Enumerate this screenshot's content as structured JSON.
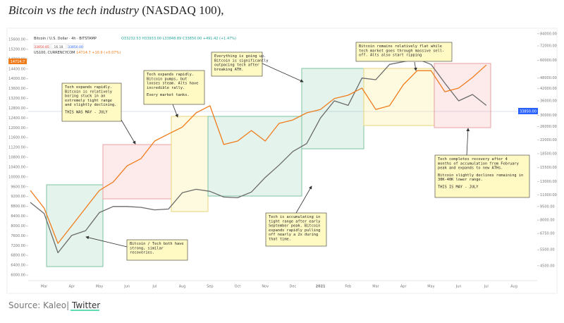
{
  "article": {
    "title_italic": "Bitcoin vs the tech industry",
    "title_rest": "(NASDAQ 100),",
    "source_prefix": "Source: Kaleo|",
    "source_link": "Twitter"
  },
  "chart_data": {
    "type": "line",
    "ohlc": "O33232.53 H33933.00 L33848.89 C33850.00 +491.42 (+1.47%)",
    "quote_boxes": [
      "33850.85",
      "16.18",
      "33850.00"
    ],
    "us100_quote": "14714.7 +10.9 (+0.07%)",
    "last_price_left": "14714.7",
    "last_price_right": "33850.00",
    "categories": [
      null,
      "Mar",
      null,
      "Apr",
      null,
      "May",
      null,
      "Jun",
      null,
      "Jul",
      null,
      "Aug",
      null,
      "Sep",
      null,
      "Oct",
      null,
      "Nov",
      null,
      "Dec",
      null,
      "2021",
      null,
      "Feb",
      null,
      "Mar",
      null,
      "Apr",
      null,
      "May",
      null,
      "Jun",
      null,
      "Jul",
      null,
      "Aug"
    ],
    "series": [
      {
        "name": "Bitcoin / U.S. Dollar · 4h · BITSTAMP",
        "color": "#6b6b6b",
        "axis": "y2",
        "values": [
          10000,
          8700,
          5300,
          6600,
          7000,
          8800,
          9500,
          9500,
          9400,
          9100,
          9200,
          11300,
          11800,
          11500,
          10700,
          10600,
          11400,
          13700,
          16000,
          19000,
          21000,
          29000,
          36000,
          34000,
          48000,
          47000,
          57000,
          59000,
          61000,
          57000,
          45000,
          36000,
          39000,
          34000,
          null,
          null
        ]
      },
      {
        "name": "US100, CURRENCYCOM",
        "color": "#f07c1c",
        "values": [
          9450,
          8730,
          7290,
          8010,
          8730,
          9450,
          9790,
          10450,
          10740,
          11460,
          11750,
          12030,
          12610,
          12900,
          11320,
          11460,
          11890,
          11460,
          12180,
          12320,
          12610,
          12750,
          13190,
          13330,
          13620,
          12750,
          12900,
          13760,
          14330,
          14330,
          13470,
          13620,
          14050,
          14560,
          null,
          null
        ]
      }
    ],
    "ylim": [
      6000,
      15600
    ],
    "yticks": [
      {
        "value": 6000,
        "label": "6000.00"
      },
      {
        "value": 6400,
        "label": "6400.00"
      },
      {
        "value": 6800,
        "label": "6800.00"
      },
      {
        "value": 7200,
        "label": "7200.00"
      },
      {
        "value": 7600,
        "label": "7600.00"
      },
      {
        "value": 8000,
        "label": "8000.00"
      },
      {
        "value": 8400,
        "label": "8400.00"
      },
      {
        "value": 8800,
        "label": "8800.00"
      },
      {
        "value": 9200,
        "label": "9200.00"
      },
      {
        "value": 9600,
        "label": "9600.00"
      },
      {
        "value": 10000,
        "label": "10000.00"
      },
      {
        "value": 10400,
        "label": "10400.00"
      },
      {
        "value": 10800,
        "label": "10800.00"
      },
      {
        "value": 11200,
        "label": "11200.00"
      },
      {
        "value": 11600,
        "label": "11600.00"
      },
      {
        "value": 12000,
        "label": "12000.00"
      },
      {
        "value": 12400,
        "label": "12400.00"
      },
      {
        "value": 12800,
        "label": "12800.00"
      },
      {
        "value": 13200,
        "label": "13200.00"
      },
      {
        "value": 13600,
        "label": "13600.00"
      },
      {
        "value": 14000,
        "label": "14000.00"
      },
      {
        "value": 14400,
        "label": "14400.00"
      },
      {
        "value": 14800,
        "label": "14800.00"
      },
      {
        "value": 15200,
        "label": "15200.00"
      },
      {
        "value": 15600,
        "label": "15600.00"
      }
    ],
    "y2lim": [
      4000,
      90000
    ],
    "y2log": true,
    "y2ticks": [
      {
        "value": 84000,
        "label": "84000.00"
      },
      {
        "value": 72000,
        "label": "72000.00"
      },
      {
        "value": 60000,
        "label": "60000.00"
      },
      {
        "value": 48000,
        "label": "48000.00"
      },
      {
        "value": 42000,
        "label": "42000.00"
      },
      {
        "value": 36000,
        "label": "36000.00"
      },
      {
        "value": 30000,
        "label": "30000.00"
      },
      {
        "value": 26000,
        "label": "26000.00"
      },
      {
        "value": 22000,
        "label": "22000.00"
      },
      {
        "value": 18500,
        "label": "18500.00"
      },
      {
        "value": 15500,
        "label": "15500.00"
      },
      {
        "value": 13000,
        "label": "13000.00"
      },
      {
        "value": 11000,
        "label": "11000.00"
      },
      {
        "value": 9500,
        "label": "9500.00"
      },
      {
        "value": 8000,
        "label": "8000.00"
      },
      {
        "value": 6750,
        "label": "6750.00"
      },
      {
        "value": 5500,
        "label": "5500.00"
      },
      {
        "value": 4500,
        "label": "4500.00"
      }
    ],
    "grid": false,
    "annotations": [
      {
        "paragraphs": [
          [
            "Tech expands rapidly.",
            "Bitcoin is relatively",
            "boring stuck in an",
            "extremely tight range",
            "and slightly declining."
          ],
          [
            "THIS WAS MAY - JULY"
          ]
        ]
      },
      {
        "paragraphs": [
          [
            "Tech expands rapidly.",
            "Bitcoin pumps, but",
            "looses steam. Alts have",
            "incredible rally."
          ],
          [
            "Every market tanks."
          ]
        ]
      },
      {
        "paragraphs": [
          [
            "Everything is going up.",
            "Bitcoin is significantly",
            "outpacing tech after",
            "breaking ATH."
          ]
        ]
      },
      {
        "paragraphs": [
          [
            "Bitcoin remains relatively flat while",
            "tech market goes through massive sell-",
            "off. Alts also start ripping"
          ]
        ]
      },
      {
        "paragraphs": [
          [
            "Tech completes recovery after 4",
            "months of accumulation from February",
            "peak and expands to new ATHs."
          ],
          [
            "Bitcoin slightly declines remaining in",
            "30K-40K lower range."
          ],
          [
            "THIS IS MAY - JULY"
          ]
        ]
      },
      {
        "paragraphs": [
          [
            "Tech is accumulating in",
            "tight range after early",
            "September peak. Bitcoin",
            "expands rapidly pulling",
            "off nearly a 2x during",
            "that time."
          ]
        ]
      },
      {
        "paragraphs": [
          [
            "Bitcoin / Tech both have",
            "strong, similar",
            "recoveries."
          ]
        ]
      }
    ]
  }
}
